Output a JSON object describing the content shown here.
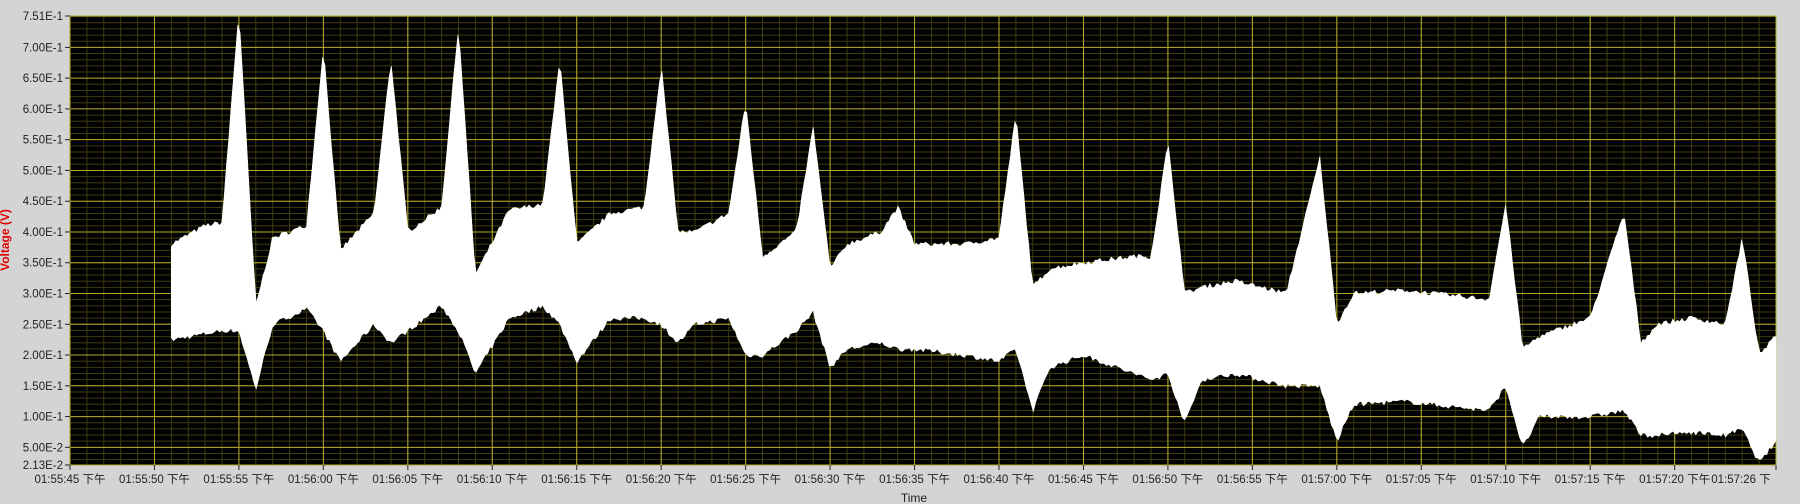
{
  "chart_data": {
    "type": "area",
    "xlabel": "Time",
    "ylabel": "Voltage (V)",
    "ylim": [
      0.0213,
      0.751
    ],
    "y_tick_labels": [
      "7.51E-1",
      "7.00E-1",
      "6.50E-1",
      "6.00E-1",
      "5.50E-1",
      "5.00E-1",
      "4.50E-1",
      "4.00E-1",
      "3.50E-1",
      "3.00E-1",
      "2.50E-1",
      "2.00E-1",
      "1.50E-1",
      "1.00E-1",
      "5.00E-2",
      "2.13E-2"
    ],
    "y_tick_values": [
      0.751,
      0.7,
      0.65,
      0.6,
      0.55,
      0.5,
      0.45,
      0.4,
      0.35,
      0.3,
      0.25,
      0.2,
      0.15,
      0.1,
      0.05,
      0.0213
    ],
    "x_tick_labels": [
      "01:55:45 下午",
      "01:55:50 下午",
      "01:55:55 下午",
      "01:56:00 下午",
      "01:56:05 下午",
      "01:56:10 下午",
      "01:56:15 下午",
      "01:56:20 下午",
      "01:56:25 下午",
      "01:56:30 下午",
      "01:56:35 下午",
      "01:56:40 下午",
      "01:56:45 下午",
      "01:56:50 下午",
      "01:56:55 下午",
      "01:57:00 下午",
      "01:57:05 下午",
      "01:57:10 下午",
      "01:57:15 下午",
      "01:57:20 下午",
      "01:57:26 下"
    ],
    "x_tick_seconds": [
      "01:55:45",
      "01:55:50",
      "01:55:55",
      "01:56:00",
      "01:56:05",
      "01:56:10",
      "01:56:15",
      "01:56:20",
      "01:56:25",
      "01:56:30",
      "01:56:35",
      "01:56:40",
      "01:56:45",
      "01:56:50",
      "01:56:55",
      "01:57:00",
      "01:57:05",
      "01:57:10",
      "01:57:15",
      "01:57:20",
      "01:57:26"
    ],
    "xlim": [
      "01:55:45",
      "01:57:26"
    ],
    "grid": true,
    "colors": {
      "plot_bg": "#000000",
      "major_grid": "#b5ad2a",
      "minor_grid": "#3f3c10",
      "trace": "#ffffff",
      "frame": "#d4d4d4",
      "ylabel": "#e00000"
    },
    "trace_start": "01:55:51",
    "trace_end": "01:57:26",
    "envelope": [
      {
        "t": "01:55:51",
        "lo": 0.225,
        "hi": 0.38
      },
      {
        "t": "01:55:53",
        "lo": 0.235,
        "hi": 0.41
      },
      {
        "t": "01:55:54",
        "lo": 0.24,
        "hi": 0.415
      },
      {
        "t": "01:55:55",
        "lo": 0.24,
        "hi": 0.76
      },
      {
        "t": "01:55:56",
        "lo": 0.145,
        "hi": 0.28
      },
      {
        "t": "01:55:57",
        "lo": 0.25,
        "hi": 0.39
      },
      {
        "t": "01:55:59",
        "lo": 0.275,
        "hi": 0.41
      },
      {
        "t": "01:56:00",
        "lo": 0.24,
        "hi": 0.7
      },
      {
        "t": "01:56:01",
        "lo": 0.19,
        "hi": 0.37
      },
      {
        "t": "01:56:03",
        "lo": 0.25,
        "hi": 0.43
      },
      {
        "t": "01:56:04",
        "lo": 0.22,
        "hi": 0.68
      },
      {
        "t": "01:56:05",
        "lo": 0.24,
        "hi": 0.4
      },
      {
        "t": "01:56:07",
        "lo": 0.28,
        "hi": 0.44
      },
      {
        "t": "01:56:08",
        "lo": 0.24,
        "hi": 0.735
      },
      {
        "t": "01:56:09",
        "lo": 0.17,
        "hi": 0.33
      },
      {
        "t": "01:56:11",
        "lo": 0.26,
        "hi": 0.435
      },
      {
        "t": "01:56:13",
        "lo": 0.28,
        "hi": 0.445
      },
      {
        "t": "01:56:14",
        "lo": 0.25,
        "hi": 0.68
      },
      {
        "t": "01:56:15",
        "lo": 0.19,
        "hi": 0.38
      },
      {
        "t": "01:56:17",
        "lo": 0.26,
        "hi": 0.43
      },
      {
        "t": "01:56:19",
        "lo": 0.26,
        "hi": 0.44
      },
      {
        "t": "01:56:20",
        "lo": 0.25,
        "hi": 0.67
      },
      {
        "t": "01:56:21",
        "lo": 0.22,
        "hi": 0.4
      },
      {
        "t": "01:56:22",
        "lo": 0.25,
        "hi": 0.4
      },
      {
        "t": "01:56:24",
        "lo": 0.26,
        "hi": 0.43
      },
      {
        "t": "01:56:25",
        "lo": 0.2,
        "hi": 0.61
      },
      {
        "t": "01:56:26",
        "lo": 0.2,
        "hi": 0.36
      },
      {
        "t": "01:56:28",
        "lo": 0.24,
        "hi": 0.4
      },
      {
        "t": "01:56:29",
        "lo": 0.27,
        "hi": 0.57
      },
      {
        "t": "01:56:30",
        "lo": 0.18,
        "hi": 0.34
      },
      {
        "t": "01:56:31",
        "lo": 0.21,
        "hi": 0.38
      },
      {
        "t": "01:56:33",
        "lo": 0.22,
        "hi": 0.4
      },
      {
        "t": "01:56:34",
        "lo": 0.21,
        "hi": 0.44
      },
      {
        "t": "01:56:35",
        "lo": 0.21,
        "hi": 0.38
      },
      {
        "t": "01:56:38",
        "lo": 0.2,
        "hi": 0.38
      },
      {
        "t": "01:56:40",
        "lo": 0.19,
        "hi": 0.39
      },
      {
        "t": "01:56:41",
        "lo": 0.21,
        "hi": 0.59
      },
      {
        "t": "01:56:42",
        "lo": 0.11,
        "hi": 0.31
      },
      {
        "t": "01:56:43",
        "lo": 0.18,
        "hi": 0.34
      },
      {
        "t": "01:56:45",
        "lo": 0.2,
        "hi": 0.35
      },
      {
        "t": "01:56:48",
        "lo": 0.17,
        "hi": 0.36
      },
      {
        "t": "01:56:49",
        "lo": 0.16,
        "hi": 0.36
      },
      {
        "t": "01:56:50",
        "lo": 0.17,
        "hi": 0.545
      },
      {
        "t": "01:56:51",
        "lo": 0.09,
        "hi": 0.3
      },
      {
        "t": "01:56:52",
        "lo": 0.16,
        "hi": 0.31
      },
      {
        "t": "01:56:54",
        "lo": 0.17,
        "hi": 0.32
      },
      {
        "t": "01:56:57",
        "lo": 0.15,
        "hi": 0.3
      },
      {
        "t": "01:56:59",
        "lo": 0.15,
        "hi": 0.52
      },
      {
        "t": "01:57:00",
        "lo": 0.06,
        "hi": 0.25
      },
      {
        "t": "01:57:01",
        "lo": 0.12,
        "hi": 0.3
      },
      {
        "t": "01:57:04",
        "lo": 0.125,
        "hi": 0.305
      },
      {
        "t": "01:57:09",
        "lo": 0.11,
        "hi": 0.29
      },
      {
        "t": "01:57:10",
        "lo": 0.15,
        "hi": 0.445
      },
      {
        "t": "01:57:11",
        "lo": 0.05,
        "hi": 0.21
      },
      {
        "t": "01:57:12",
        "lo": 0.1,
        "hi": 0.23
      },
      {
        "t": "01:57:15",
        "lo": 0.1,
        "hi": 0.26
      },
      {
        "t": "01:57:17",
        "lo": 0.11,
        "hi": 0.43
      },
      {
        "t": "01:57:18",
        "lo": 0.07,
        "hi": 0.22
      },
      {
        "t": "01:57:19",
        "lo": 0.07,
        "hi": 0.25
      },
      {
        "t": "01:57:21",
        "lo": 0.075,
        "hi": 0.26
      },
      {
        "t": "01:57:23",
        "lo": 0.07,
        "hi": 0.25
      },
      {
        "t": "01:57:24",
        "lo": 0.08,
        "hi": 0.39
      },
      {
        "t": "01:57:25",
        "lo": 0.025,
        "hi": 0.2
      },
      {
        "t": "01:57:26",
        "lo": 0.06,
        "hi": 0.23
      }
    ]
  }
}
